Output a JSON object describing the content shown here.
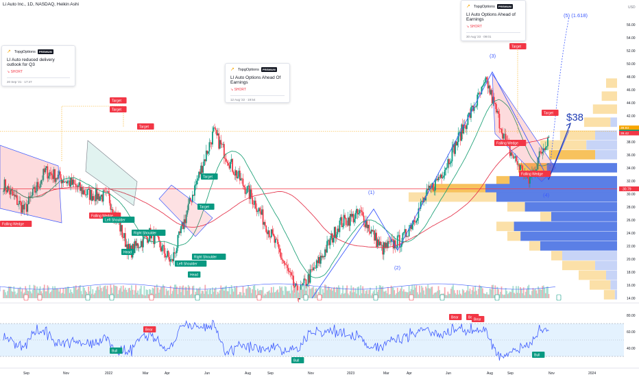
{
  "header": {
    "title": "Li Auto Inc., 1D, NASDAQ, Heikin Ashi"
  },
  "price_axis": {
    "currency": "USD",
    "ticks": [
      "56.00",
      "54.00",
      "52.00",
      "50.00",
      "48.00",
      "46.00",
      "44.00",
      "42.00",
      "40.00",
      "38.00",
      "36.00",
      "34.00",
      "32.00",
      "30.00",
      "28.00",
      "26.00",
      "24.00",
      "22.00",
      "20.00",
      "18.00",
      "16.00",
      "14.00"
    ]
  },
  "rsi_axis": {
    "ticks": [
      "80.00",
      "60.00",
      "40.00"
    ]
  },
  "time_axis": {
    "labels": [
      "Sep",
      "Nov",
      "2022",
      "Mar",
      "Apr",
      "Jun",
      "Aug",
      "Sep",
      "Nov",
      "2023",
      "Mar",
      "Apr",
      "Jun",
      "Aug",
      "Sep",
      "Nov",
      "2024"
    ]
  },
  "price_labels": [
    {
      "text": "39.93",
      "color": "#f7a600"
    },
    {
      "text": "39.44",
      "color": "#089981",
      "prefix": "LI"
    },
    {
      "text": "39.42",
      "color": "#f23645"
    },
    {
      "text": "30.79",
      "color": "#f23645"
    }
  ],
  "cards": [
    {
      "author": "TopgOptions",
      "badge": "PREMIUM",
      "title": "LI Auto reduced delivery outlook for Q3",
      "direction": "SHORT",
      "timestamp": "20 Sep '21 · 17:47"
    },
    {
      "author": "TopgOptions",
      "badge": "PREMIUM",
      "title": "LI Auto Options Ahead Of Earnings",
      "direction": "SHORT",
      "timestamp": "12 Aug '22 · 19:54"
    },
    {
      "author": "TopgOptions",
      "badge": "PREMIUM",
      "title": "LI Auto Options Ahead of Earnings",
      "direction": "SHORT",
      "timestamp": "30 Aug '23 · 09:01"
    }
  ],
  "annotations": {
    "target": "Target",
    "falling_wedge": "Falling Wedge",
    "left_shoulder": "Left Shoulder",
    "right_shoulder": "Right Shoulder",
    "head": "Head",
    "bear": "Bear",
    "bull": "Bull",
    "wave_1": "(1)",
    "wave_2": "(2)",
    "wave_3": "(3)",
    "wave_4": "(4)",
    "wave_5": "(5) (1.618)",
    "price_target": "$38"
  },
  "chart_data": {
    "type": "line",
    "series": [
      {
        "name": "",
        "x": [
          "2021-09",
          "2021-10",
          "2021-11",
          "2021-12",
          "2022-01",
          "2022-02",
          "2022-03",
          "2022-04",
          "2022-05",
          "2022-06",
          "2022-07",
          "2022-08",
          "2022-09",
          "2022-10",
          "2022-11",
          "2022-12",
          "2023-01",
          "2023-02",
          "2023-03",
          "2023-04",
          "2023-05",
          "2023-06",
          "2023-07",
          "2023-08",
          "2023-09",
          "2023-10",
          "2023-11"
        ],
        "values": [
          31.5,
          27.5,
          33.5,
          32.0,
          30.0,
          29.5,
          21.0,
          24.0,
          19.5,
          30.0,
          39.5,
          33.5,
          28.5,
          22.0,
          14.5,
          19.5,
          25.5,
          27.0,
          21.5,
          23.0,
          29.0,
          34.0,
          41.0,
          47.2,
          37.0,
          32.0,
          39.44
        ]
      }
    ],
    "rsi_range": [
      20,
      90
    ],
    "ylim": [
      14,
      57
    ],
    "volume_profile": true,
    "levels": [
      30.79
    ]
  }
}
